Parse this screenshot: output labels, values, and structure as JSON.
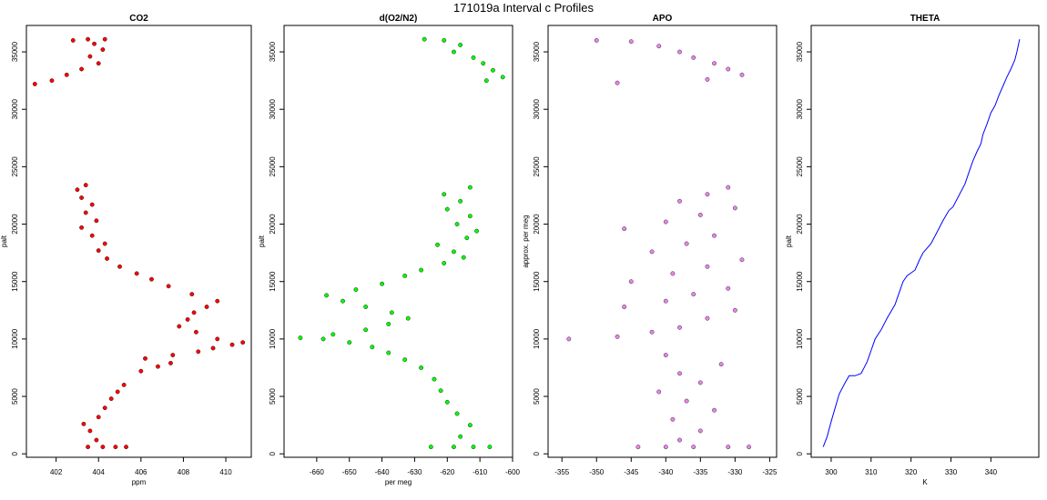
{
  "figure": {
    "title": "171019a   Interval c Profiles"
  },
  "chart_data": [
    {
      "type": "scatter",
      "title": "CO2",
      "xlabel": "ppm",
      "ylabel": "palt",
      "xlim": [
        400.6,
        411.2
      ],
      "ylim": [
        -300,
        37300
      ],
      "xticks": [
        "402",
        "404",
        "406",
        "408",
        "410"
      ],
      "yticks": [
        "0",
        "5000",
        "10000",
        "15000",
        "20000",
        "25000",
        "30000",
        "35000"
      ],
      "grid": false,
      "color": "#ff0000",
      "series": [
        {
          "points": [
            [
              403.5,
              600
            ],
            [
              404.2,
              600
            ],
            [
              404.8,
              600
            ],
            [
              405.3,
              600
            ],
            [
              403.9,
              1200
            ],
            [
              403.6,
              2000
            ],
            [
              403.3,
              2600
            ],
            [
              404.0,
              3200
            ],
            [
              404.3,
              4000
            ],
            [
              404.6,
              4800
            ],
            [
              404.9,
              5400
            ],
            [
              405.2,
              6000
            ],
            [
              406.0,
              7200
            ],
            [
              406.8,
              7600
            ],
            [
              407.4,
              7900
            ],
            [
              406.2,
              8300
            ],
            [
              407.5,
              8600
            ],
            [
              408.7,
              8900
            ],
            [
              409.4,
              9200
            ],
            [
              410.3,
              9500
            ],
            [
              410.8,
              9700
            ],
            [
              409.6,
              10000
            ],
            [
              408.6,
              10600
            ],
            [
              407.8,
              11100
            ],
            [
              408.2,
              11700
            ],
            [
              408.5,
              12300
            ],
            [
              409.1,
              12800
            ],
            [
              409.6,
              13300
            ],
            [
              408.4,
              13900
            ],
            [
              407.3,
              14600
            ],
            [
              406.5,
              15200
            ],
            [
              405.8,
              15700
            ],
            [
              405.0,
              16300
            ],
            [
              404.4,
              17000
            ],
            [
              404.0,
              17700
            ],
            [
              404.3,
              18300
            ],
            [
              403.7,
              19000
            ],
            [
              403.2,
              19700
            ],
            [
              403.9,
              20300
            ],
            [
              403.4,
              21000
            ],
            [
              403.7,
              21700
            ],
            [
              403.2,
              22300
            ],
            [
              403.0,
              23000
            ],
            [
              403.4,
              23400
            ],
            [
              401.0,
              32200
            ],
            [
              401.8,
              32500
            ],
            [
              402.5,
              33000
            ],
            [
              403.2,
              33500
            ],
            [
              404.0,
              34000
            ],
            [
              403.6,
              34600
            ],
            [
              404.2,
              35200
            ],
            [
              403.8,
              35700
            ],
            [
              402.8,
              36000
            ],
            [
              403.5,
              36100
            ],
            [
              404.3,
              36100
            ]
          ]
        }
      ]
    },
    {
      "type": "scatter",
      "title": "d(O2/N2)",
      "xlabel": "per meg",
      "ylabel": "palt",
      "xlim": [
        -670,
        -600
      ],
      "ylim": [
        -300,
        37300
      ],
      "xticks": [
        "-660",
        "-650",
        "-640",
        "-630",
        "-620",
        "-610",
        "-600"
      ],
      "yticks": [
        "0",
        "5000",
        "10000",
        "15000",
        "20000",
        "25000",
        "30000",
        "35000"
      ],
      "grid": false,
      "color": "#00ff00",
      "series": [
        {
          "points": [
            [
              -625,
              600
            ],
            [
              -618,
              600
            ],
            [
              -612,
              600
            ],
            [
              -607,
              600
            ],
            [
              -616,
              1500
            ],
            [
              -613,
              2500
            ],
            [
              -617,
              3500
            ],
            [
              -620,
              4500
            ],
            [
              -622,
              5500
            ],
            [
              -624,
              6500
            ],
            [
              -628,
              7500
            ],
            [
              -633,
              8200
            ],
            [
              -638,
              8800
            ],
            [
              -643,
              9300
            ],
            [
              -650,
              9700
            ],
            [
              -658,
              10000
            ],
            [
              -665,
              10100
            ],
            [
              -655,
              10400
            ],
            [
              -645,
              10800
            ],
            [
              -638,
              11300
            ],
            [
              -632,
              11800
            ],
            [
              -637,
              12300
            ],
            [
              -645,
              12800
            ],
            [
              -652,
              13300
            ],
            [
              -657,
              13800
            ],
            [
              -648,
              14300
            ],
            [
              -640,
              14800
            ],
            [
              -633,
              15500
            ],
            [
              -628,
              16000
            ],
            [
              -621,
              16600
            ],
            [
              -615,
              17100
            ],
            [
              -618,
              17600
            ],
            [
              -623,
              18200
            ],
            [
              -614,
              18800
            ],
            [
              -611,
              19400
            ],
            [
              -617,
              20000
            ],
            [
              -613,
              20700
            ],
            [
              -620,
              21300
            ],
            [
              -616,
              22000
            ],
            [
              -621,
              22600
            ],
            [
              -613,
              23200
            ],
            [
              -627,
              36100
            ],
            [
              -621,
              36000
            ],
            [
              -616,
              35600
            ],
            [
              -618,
              35000
            ],
            [
              -612,
              34500
            ],
            [
              -609,
              34000
            ],
            [
              -606,
              33400
            ],
            [
              -603,
              32800
            ],
            [
              -608,
              32500
            ]
          ]
        }
      ]
    },
    {
      "type": "scatter",
      "title": "APO",
      "xlabel": "",
      "ylabel": "approx. per meg",
      "xlim": [
        -357,
        -324
      ],
      "ylim": [
        -300,
        37300
      ],
      "xticks": [
        "-355",
        "-350",
        "-345",
        "-340",
        "-335",
        "-330",
        "-325"
      ],
      "yticks": [
        "0",
        "5000",
        "10000",
        "15000",
        "20000",
        "25000",
        "30000",
        "35000"
      ],
      "grid": false,
      "color": "#ee82ee",
      "series": [
        {
          "points": [
            [
              -344,
              600
            ],
            [
              -340,
              600
            ],
            [
              -336,
              600
            ],
            [
              -331,
              600
            ],
            [
              -328,
              600
            ],
            [
              -338,
              1200
            ],
            [
              -335,
              2000
            ],
            [
              -339,
              3000
            ],
            [
              -333,
              3800
            ],
            [
              -337,
              4600
            ],
            [
              -341,
              5400
            ],
            [
              -335,
              6200
            ],
            [
              -338,
              7000
            ],
            [
              -332,
              7800
            ],
            [
              -340,
              8600
            ],
            [
              -354,
              10000
            ],
            [
              -347,
              10200
            ],
            [
              -342,
              10600
            ],
            [
              -338,
              11000
            ],
            [
              -334,
              11800
            ],
            [
              -330,
              12500
            ],
            [
              -346,
              12800
            ],
            [
              -340,
              13300
            ],
            [
              -336,
              13900
            ],
            [
              -331,
              14400
            ],
            [
              -345,
              15000
            ],
            [
              -339,
              15700
            ],
            [
              -334,
              16300
            ],
            [
              -329,
              16900
            ],
            [
              -342,
              17600
            ],
            [
              -337,
              18300
            ],
            [
              -333,
              19000
            ],
            [
              -346,
              19600
            ],
            [
              -340,
              20200
            ],
            [
              -335,
              20800
            ],
            [
              -330,
              21400
            ],
            [
              -338,
              22000
            ],
            [
              -334,
              22600
            ],
            [
              -331,
              23200
            ],
            [
              -350,
              36000
            ],
            [
              -345,
              35900
            ],
            [
              -341,
              35500
            ],
            [
              -338,
              35000
            ],
            [
              -336,
              34500
            ],
            [
              -333,
              34000
            ],
            [
              -331,
              33500
            ],
            [
              -329,
              33000
            ],
            [
              -334,
              32600
            ],
            [
              -347,
              32300
            ]
          ]
        }
      ]
    },
    {
      "type": "line",
      "title": "THETA",
      "xlabel": "K",
      "ylabel": "palt",
      "xlim": [
        295,
        352
      ],
      "ylim": [
        -300,
        37300
      ],
      "xticks": [
        "300",
        "310",
        "320",
        "330",
        "340"
      ],
      "yticks": [
        "0",
        "5000",
        "10000",
        "15000",
        "20000",
        "25000",
        "30000",
        "35000"
      ],
      "grid": false,
      "color": "#0000ff",
      "series": [
        {
          "points": [
            [
              298,
              600
            ],
            [
              299,
              1500
            ],
            [
              300,
              2800
            ],
            [
              301,
              4000
            ],
            [
              302,
              5200
            ],
            [
              303.5,
              6200
            ],
            [
              304.5,
              6800
            ],
            [
              306,
              6800
            ],
            [
              307.5,
              7000
            ],
            [
              309,
              8000
            ],
            [
              310,
              9000
            ],
            [
              311,
              10000
            ],
            [
              312.5,
              10800
            ],
            [
              314,
              11800
            ],
            [
              316,
              13000
            ],
            [
              317,
              14000
            ],
            [
              318,
              15000
            ],
            [
              319,
              15500
            ],
            [
              321,
              16000
            ],
            [
              322,
              16800
            ],
            [
              323,
              17500
            ],
            [
              325,
              18300
            ],
            [
              326.5,
              19300
            ],
            [
              328,
              20300
            ],
            [
              329.5,
              21200
            ],
            [
              330.5,
              21500
            ],
            [
              332,
              22500
            ],
            [
              333.5,
              23500
            ],
            [
              334.5,
              24500
            ],
            [
              335.5,
              25500
            ],
            [
              336.5,
              26300
            ],
            [
              337.5,
              27000
            ],
            [
              338,
              27800
            ],
            [
              339,
              28700
            ],
            [
              340,
              29700
            ],
            [
              341,
              30300
            ],
            [
              342,
              31200
            ],
            [
              343,
              32000
            ],
            [
              344,
              32800
            ],
            [
              345,
              33500
            ],
            [
              346,
              34300
            ],
            [
              346.5,
              35000
            ],
            [
              347,
              35800
            ],
            [
              347.2,
              36100
            ]
          ]
        }
      ]
    }
  ]
}
